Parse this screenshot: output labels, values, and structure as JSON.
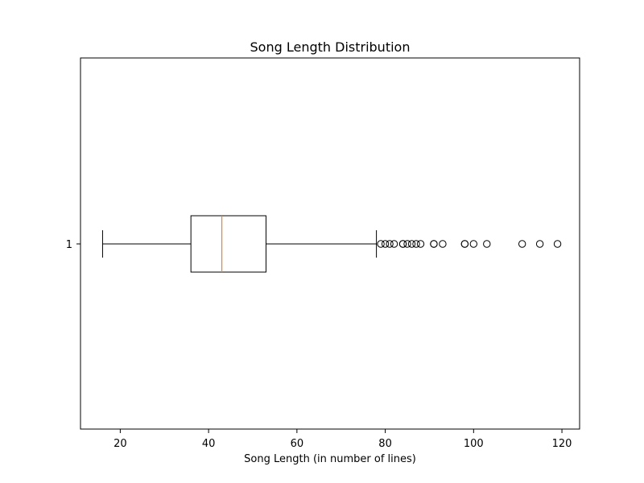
{
  "chart_data": {
    "type": "boxplot",
    "orientation": "horizontal",
    "title": "Song Length Distribution",
    "xlabel": "Song Length (in number of lines)",
    "ylabel": "",
    "xlim": [
      11,
      124
    ],
    "x_ticks": [
      20,
      40,
      60,
      80,
      100,
      120
    ],
    "categories": [
      "1"
    ],
    "series": [
      {
        "name": "",
        "whisker_low": 16,
        "q1": 36,
        "median": 43,
        "q3": 53,
        "whisker_high": 78,
        "outliers": [
          79,
          80,
          81,
          82,
          84,
          84,
          85,
          86,
          87,
          88,
          91,
          91,
          93,
          98,
          98,
          100,
          103,
          111,
          115,
          119
        ]
      }
    ],
    "grid": false,
    "colors": {
      "box": "#000000",
      "median": "#ff7f0e",
      "outlier": "#000000",
      "background": "#ffffff"
    }
  }
}
